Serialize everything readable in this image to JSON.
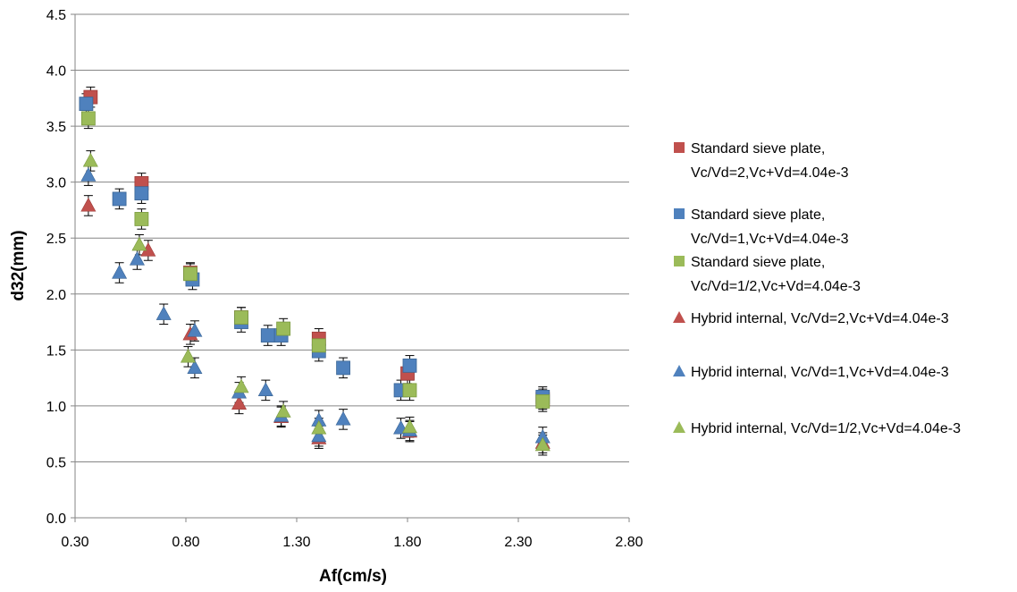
{
  "chart_data": {
    "type": "scatter",
    "xlabel": "Af(cm/s)",
    "ylabel": "d32(mm)",
    "xlim": [
      0.3,
      2.8
    ],
    "ylim": [
      0.0,
      4.5
    ],
    "x_ticks": [
      "0.30",
      "0.80",
      "1.30",
      "1.80",
      "2.30",
      "2.80"
    ],
    "y_ticks": [
      "0.0",
      "0.5",
      "1.0",
      "1.5",
      "2.0",
      "2.5",
      "3.0",
      "3.5",
      "4.0",
      "4.5"
    ],
    "grid": "horizontal",
    "legend_position": "right",
    "error_bars": true,
    "series": [
      {
        "name": "Standard sieve plate, Vc/Vd=2,Vc+Vd=4.04e-3",
        "legend_lines": [
          "Standard sieve plate,",
          "Vc/Vd=2,Vc+Vd=4.04e-3"
        ],
        "marker": "square",
        "color": "#C0504D",
        "points": [
          {
            "x": 0.37,
            "y": 3.76,
            "err": 0.09
          },
          {
            "x": 0.6,
            "y": 2.99,
            "err": 0.09
          },
          {
            "x": 0.82,
            "y": 2.19,
            "err": 0.09
          },
          {
            "x": 1.05,
            "y": 1.79,
            "err": 0.09
          },
          {
            "x": 1.4,
            "y": 1.6,
            "err": 0.09
          },
          {
            "x": 1.8,
            "y": 1.29,
            "err": 0.09
          },
          {
            "x": 2.41,
            "y": 1.06,
            "err": 0.09
          }
        ]
      },
      {
        "name": "Standard sieve plate, Vc/Vd=1,Vc+Vd=4.04e-3",
        "legend_lines": [
          "Standard sieve plate,",
          "Vc/Vd=1,Vc+Vd=4.04e-3"
        ],
        "marker": "square",
        "color": "#4F81BD",
        "points": [
          {
            "x": 0.35,
            "y": 3.7,
            "err": 0.09
          },
          {
            "x": 0.5,
            "y": 2.85,
            "err": 0.09
          },
          {
            "x": 0.6,
            "y": 2.9,
            "err": 0.09
          },
          {
            "x": 0.83,
            "y": 2.13,
            "err": 0.09
          },
          {
            "x": 1.05,
            "y": 1.75,
            "err": 0.09
          },
          {
            "x": 1.17,
            "y": 1.63,
            "err": 0.09
          },
          {
            "x": 1.23,
            "y": 1.63,
            "err": 0.09
          },
          {
            "x": 1.4,
            "y": 1.49,
            "err": 0.09
          },
          {
            "x": 1.51,
            "y": 1.34,
            "err": 0.09
          },
          {
            "x": 1.77,
            "y": 1.14,
            "err": 0.09
          },
          {
            "x": 1.81,
            "y": 1.36,
            "err": 0.09
          },
          {
            "x": 2.41,
            "y": 1.08,
            "err": 0.09
          }
        ]
      },
      {
        "name": "Standard sieve plate, Vc/Vd=1/2,Vc+Vd=4.04e-3",
        "legend_lines": [
          "Standard sieve plate,",
          "Vc/Vd=1/2,Vc+Vd=4.04e-3"
        ],
        "marker": "square",
        "color": "#9BBB59",
        "points": [
          {
            "x": 0.36,
            "y": 3.57,
            "err": 0.09
          },
          {
            "x": 0.6,
            "y": 2.67,
            "err": 0.09
          },
          {
            "x": 0.82,
            "y": 2.18,
            "err": 0.09
          },
          {
            "x": 1.05,
            "y": 1.79,
            "err": 0.09
          },
          {
            "x": 1.24,
            "y": 1.69,
            "err": 0.09
          },
          {
            "x": 1.4,
            "y": 1.54,
            "err": 0.09
          },
          {
            "x": 1.81,
            "y": 1.14,
            "err": 0.09
          },
          {
            "x": 2.41,
            "y": 1.04,
            "err": 0.09
          }
        ]
      },
      {
        "name": "Hybrid internal, Vc/Vd=2,Vc+Vd=4.04e-3",
        "legend_lines": [
          "Hybrid internal, Vc/Vd=2,Vc+Vd=4.04e-3"
        ],
        "marker": "triangle",
        "color": "#C0504D",
        "points": [
          {
            "x": 0.36,
            "y": 2.79,
            "err": 0.09
          },
          {
            "x": 0.63,
            "y": 2.39,
            "err": 0.09
          },
          {
            "x": 0.82,
            "y": 1.64,
            "err": 0.09
          },
          {
            "x": 1.04,
            "y": 1.02,
            "err": 0.09
          },
          {
            "x": 1.23,
            "y": 0.9,
            "err": 0.09
          },
          {
            "x": 1.4,
            "y": 0.71,
            "err": 0.09
          },
          {
            "x": 1.81,
            "y": 0.77,
            "err": 0.09
          },
          {
            "x": 2.41,
            "y": 0.67,
            "err": 0.09
          }
        ]
      },
      {
        "name": "Hybrid internal, Vc/Vd=1,Vc+Vd=4.04e-3",
        "legend_lines": [
          "Hybrid internal, Vc/Vd=1,Vc+Vd=4.04e-3"
        ],
        "marker": "triangle",
        "color": "#4F81BD",
        "points": [
          {
            "x": 0.36,
            "y": 3.06,
            "err": 0.09
          },
          {
            "x": 0.5,
            "y": 2.19,
            "err": 0.09
          },
          {
            "x": 0.58,
            "y": 2.31,
            "err": 0.09
          },
          {
            "x": 0.7,
            "y": 1.82,
            "err": 0.09
          },
          {
            "x": 0.84,
            "y": 1.67,
            "err": 0.09
          },
          {
            "x": 0.84,
            "y": 1.34,
            "err": 0.09
          },
          {
            "x": 1.04,
            "y": 1.12,
            "err": 0.09
          },
          {
            "x": 1.16,
            "y": 1.14,
            "err": 0.09
          },
          {
            "x": 1.23,
            "y": 0.91,
            "err": 0.09
          },
          {
            "x": 1.4,
            "y": 0.73,
            "err": 0.09
          },
          {
            "x": 1.4,
            "y": 0.87,
            "err": 0.09
          },
          {
            "x": 1.51,
            "y": 0.88,
            "err": 0.09
          },
          {
            "x": 1.77,
            "y": 0.8,
            "err": 0.09
          },
          {
            "x": 1.81,
            "y": 0.78,
            "err": 0.09
          },
          {
            "x": 2.41,
            "y": 0.72,
            "err": 0.09
          }
        ]
      },
      {
        "name": "Hybrid internal, Vc/Vd=1/2,Vc+Vd=4.04e-3",
        "legend_lines": [
          "Hybrid internal, Vc/Vd=1/2,Vc+Vd=4.04e-3"
        ],
        "marker": "triangle",
        "color": "#9BBB59",
        "points": [
          {
            "x": 0.37,
            "y": 3.19,
            "err": 0.09
          },
          {
            "x": 0.59,
            "y": 2.44,
            "err": 0.09
          },
          {
            "x": 0.81,
            "y": 1.44,
            "err": 0.09
          },
          {
            "x": 1.05,
            "y": 1.17,
            "err": 0.09
          },
          {
            "x": 1.24,
            "y": 0.95,
            "err": 0.09
          },
          {
            "x": 1.4,
            "y": 0.8,
            "err": 0.09
          },
          {
            "x": 1.81,
            "y": 0.81,
            "err": 0.09
          },
          {
            "x": 2.41,
            "y": 0.65,
            "err": 0.09
          }
        ]
      }
    ]
  }
}
